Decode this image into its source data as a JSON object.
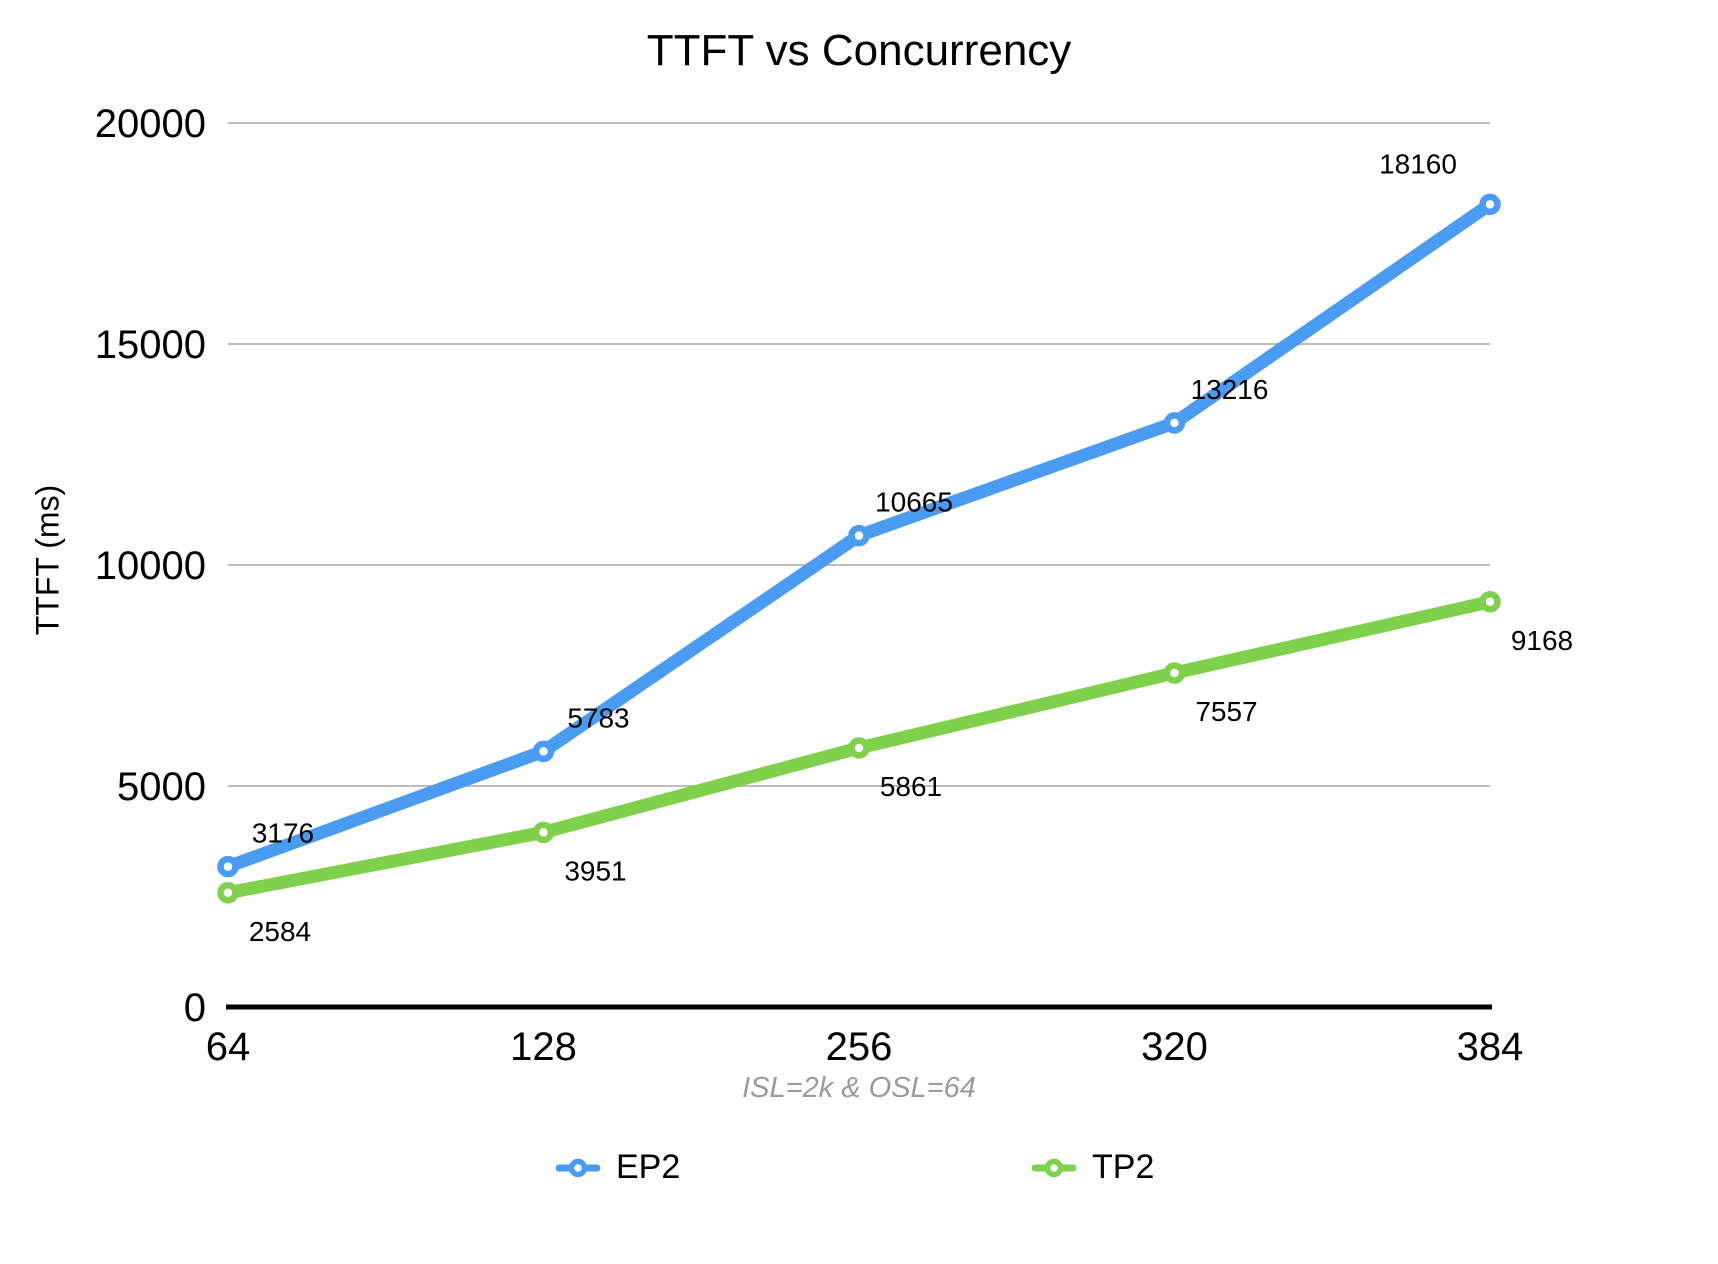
{
  "chart_data": {
    "type": "line",
    "title": "TTFT vs Concurrency",
    "xlabel": "",
    "ylabel": "TTFT (ms)",
    "note": "ISL=2k & OSL=64",
    "categories": [
      "64",
      "128",
      "256",
      "320",
      "384"
    ],
    "series": [
      {
        "name": "EP2",
        "color": "#4a9cf2",
        "values": [
          3176,
          5783,
          10665,
          13216,
          18160
        ]
      },
      {
        "name": "TP2",
        "color": "#7fd14b",
        "values": [
          2584,
          3951,
          5861,
          7557,
          9168
        ]
      }
    ],
    "y_ticks": [
      0,
      5000,
      10000,
      15000,
      20000
    ],
    "ylim": [
      0,
      20000
    ],
    "grid": true,
    "legend_position": "bottom",
    "colors": {
      "gridline": "#bdbdbd",
      "axis_line": "#000000",
      "note_text": "#9b9b9b",
      "text": "#000000",
      "background": "#ffffff"
    }
  }
}
